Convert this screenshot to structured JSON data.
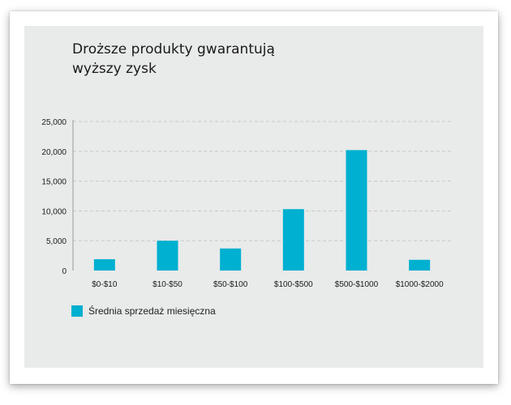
{
  "colors": {
    "bar": "#00b0d0",
    "grid": "#c8c8c8",
    "axis": "#9a9a9a",
    "text": "#1a1a1a",
    "panel": "#e9eaea"
  },
  "chart_data": {
    "type": "bar",
    "title": "Droższe produkty gwarantują\nwyższy zysk",
    "xlabel": "",
    "ylabel": "",
    "categories": [
      "$0-$10",
      "$10-$50",
      "$50-$100",
      "$100-$500",
      "$500-$1000",
      "$1000-$2000"
    ],
    "series": [
      {
        "name": "Średnia sprzedaż miesięczna",
        "values": [
          1900,
          5000,
          3700,
          10300,
          20200,
          1800
        ]
      }
    ],
    "ylim": [
      0,
      25000
    ],
    "yticks": [
      0,
      5000,
      10000,
      15000,
      20000,
      25000
    ],
    "ytick_labels": [
      "0",
      "5,000",
      "10,000",
      "15,000",
      "20,000",
      "25,000"
    ],
    "grid": true,
    "legend_position": "bottom-left"
  }
}
